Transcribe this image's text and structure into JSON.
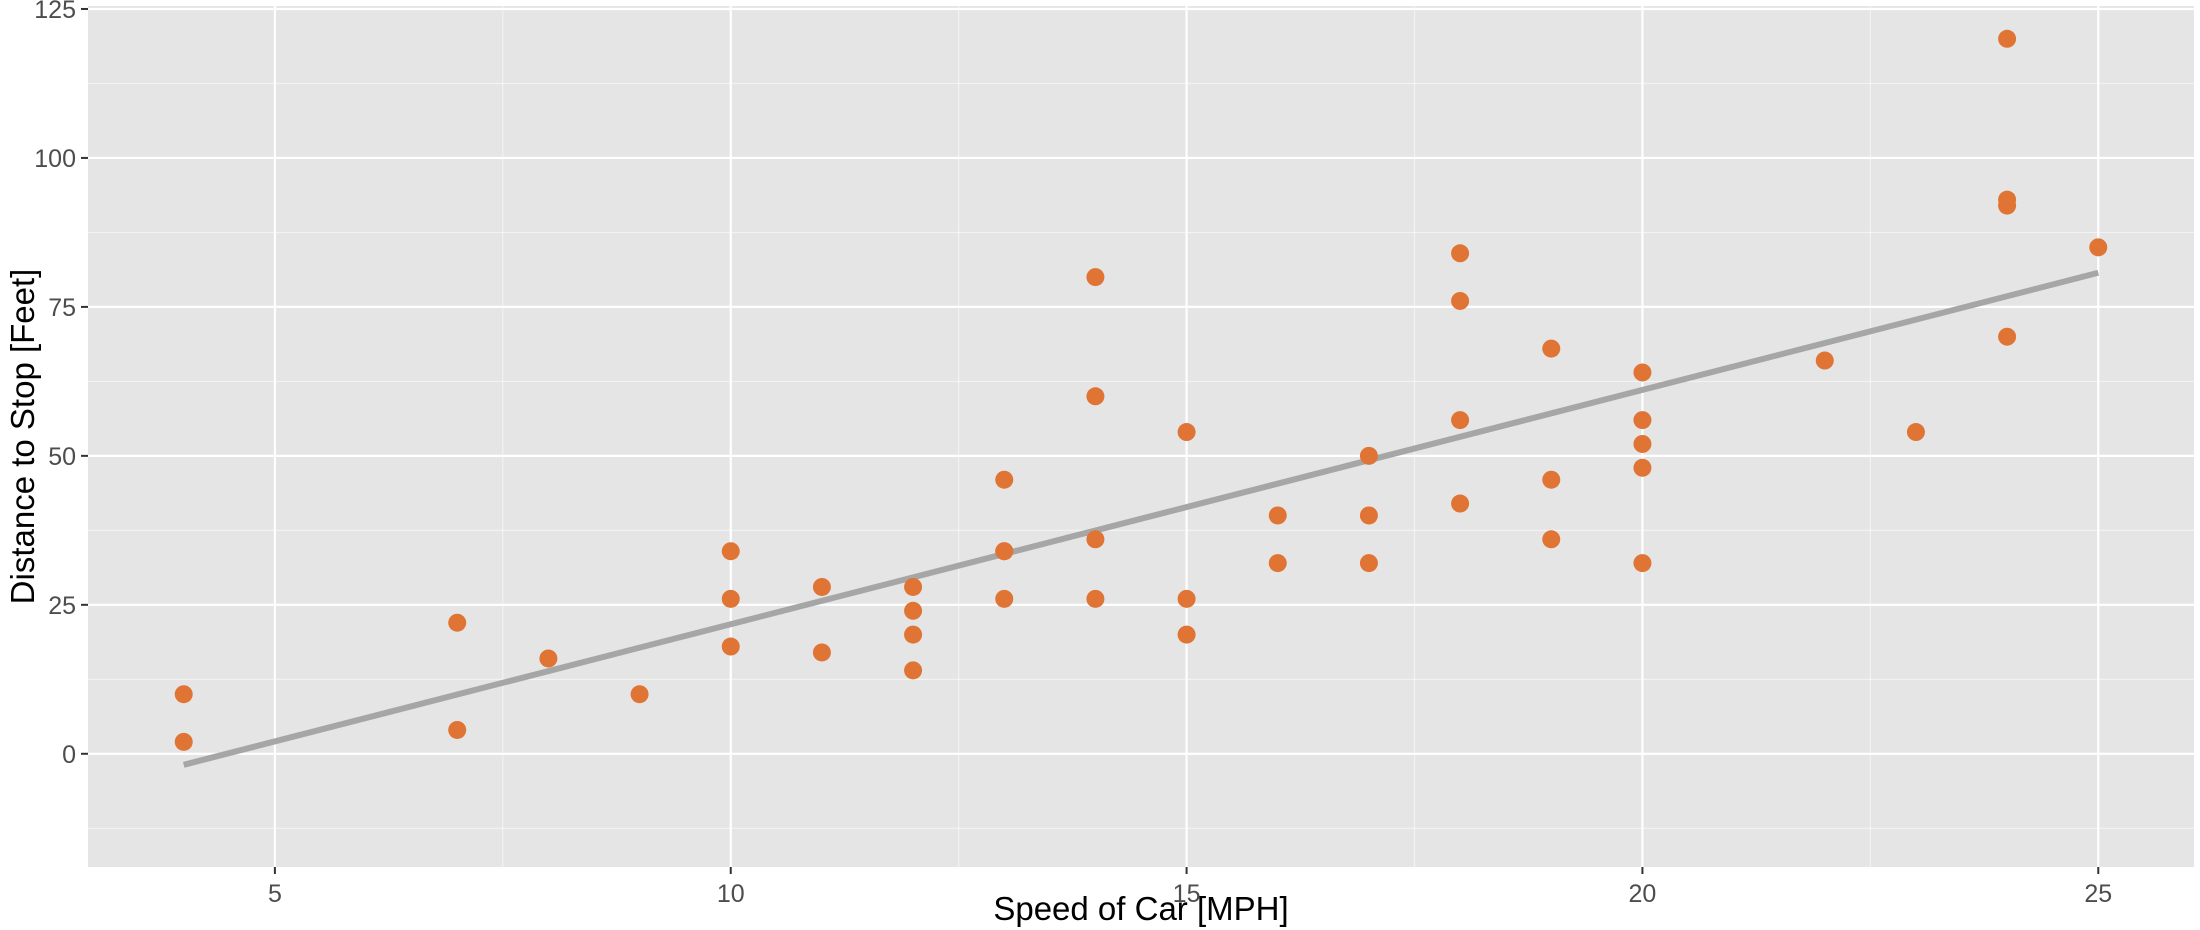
{
  "chart_data": {
    "type": "scatter",
    "title": "",
    "xlabel": "Speed of Car [MPH]",
    "ylabel": "Distance to Stop [Feet]",
    "xlim": [
      2.95,
      26.05
    ],
    "ylim": [
      -19,
      125.5
    ],
    "x_ticks": [
      5,
      10,
      15,
      20,
      25
    ],
    "y_ticks": [
      0,
      25,
      50,
      75,
      100,
      125
    ],
    "x_tick_labels": [
      "5",
      "10",
      "15",
      "20",
      "25"
    ],
    "y_tick_labels": [
      "0",
      "25",
      "50",
      "75",
      "100",
      "125"
    ],
    "grid": true,
    "legend": "none",
    "colors": {
      "panel": "#e5e5e5",
      "grid_major": "#ffffff",
      "points": "#e07434",
      "fit_line": "#a6a6a6"
    },
    "points": [
      [
        4,
        2
      ],
      [
        4,
        10
      ],
      [
        7,
        4
      ],
      [
        7,
        22
      ],
      [
        8,
        16
      ],
      [
        9,
        10
      ],
      [
        10,
        18
      ],
      [
        10,
        26
      ],
      [
        10,
        34
      ],
      [
        11,
        17
      ],
      [
        11,
        28
      ],
      [
        12,
        14
      ],
      [
        12,
        20
      ],
      [
        12,
        24
      ],
      [
        12,
        28
      ],
      [
        13,
        26
      ],
      [
        13,
        34
      ],
      [
        13,
        34
      ],
      [
        13,
        46
      ],
      [
        14,
        26
      ],
      [
        14,
        36
      ],
      [
        14,
        60
      ],
      [
        14,
        80
      ],
      [
        15,
        20
      ],
      [
        15,
        26
      ],
      [
        15,
        54
      ],
      [
        16,
        32
      ],
      [
        16,
        40
      ],
      [
        17,
        32
      ],
      [
        17,
        40
      ],
      [
        17,
        50
      ],
      [
        18,
        42
      ],
      [
        18,
        56
      ],
      [
        18,
        76
      ],
      [
        18,
        84
      ],
      [
        19,
        36
      ],
      [
        19,
        46
      ],
      [
        19,
        68
      ],
      [
        20,
        32
      ],
      [
        20,
        48
      ],
      [
        20,
        52
      ],
      [
        20,
        56
      ],
      [
        20,
        64
      ],
      [
        22,
        66
      ],
      [
        23,
        54
      ],
      [
        24,
        70
      ],
      [
        24,
        92
      ],
      [
        24,
        93
      ],
      [
        24,
        120
      ],
      [
        25,
        85
      ]
    ],
    "fit_line": {
      "x": [
        4,
        25
      ],
      "y": [
        -1.85,
        80.73
      ]
    }
  }
}
